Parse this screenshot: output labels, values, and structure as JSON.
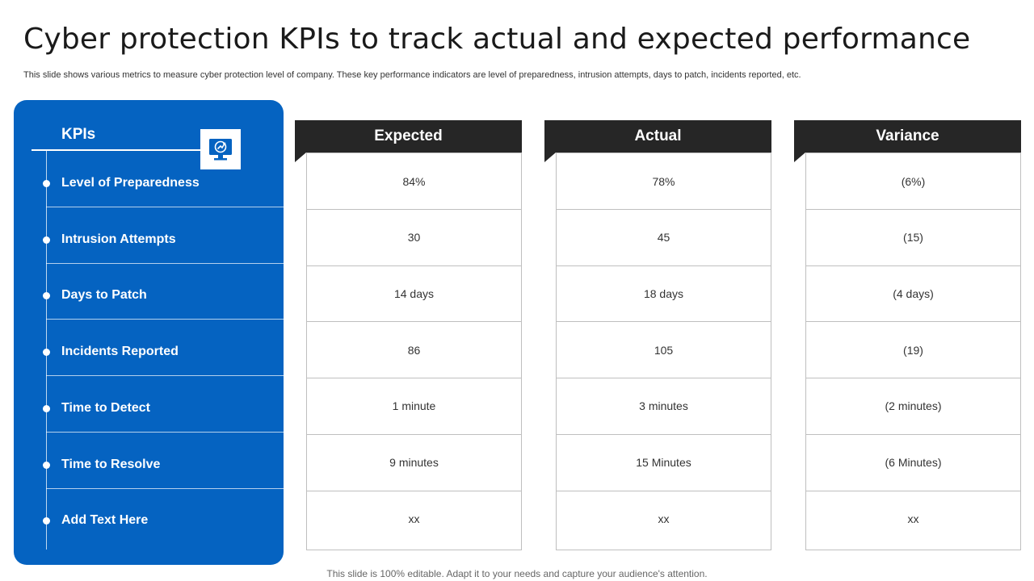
{
  "header": {
    "title": "Cyber protection KPIs to track actual and expected performance",
    "subtitle": "This slide shows various metrics to measure cyber protection level of company. These key performance indicators are level of preparedness, intrusion attempts, days to patch, incidents reported, etc."
  },
  "kpis": {
    "heading": "KPIs",
    "icon": "monitor-security-icon",
    "items": [
      "Level of Preparedness",
      "Intrusion Attempts",
      "Days to Patch",
      "Incidents Reported",
      "Time to Detect",
      "Time to Resolve",
      "Add Text Here"
    ]
  },
  "columns": [
    {
      "heading": "Expected",
      "values": [
        "84%",
        "30",
        "14 days",
        "86",
        "1 minute",
        "9 minutes",
        "xx"
      ]
    },
    {
      "heading": "Actual",
      "values": [
        "78%",
        "45",
        "18 days",
        "105",
        "3 minutes",
        "15 Minutes",
        "xx"
      ]
    },
    {
      "heading": "Variance",
      "values": [
        "(6%)",
        "(15)",
        "(4 days)",
        "(19)",
        "(2 minutes)",
        "(6 Minutes)",
        "xx"
      ]
    }
  ],
  "colors": {
    "panel": "#0563c1",
    "column_header": "#262626",
    "border": "#bfbfbf"
  },
  "footer": "This slide is 100% editable. Adapt it to your needs and capture your audience's attention."
}
